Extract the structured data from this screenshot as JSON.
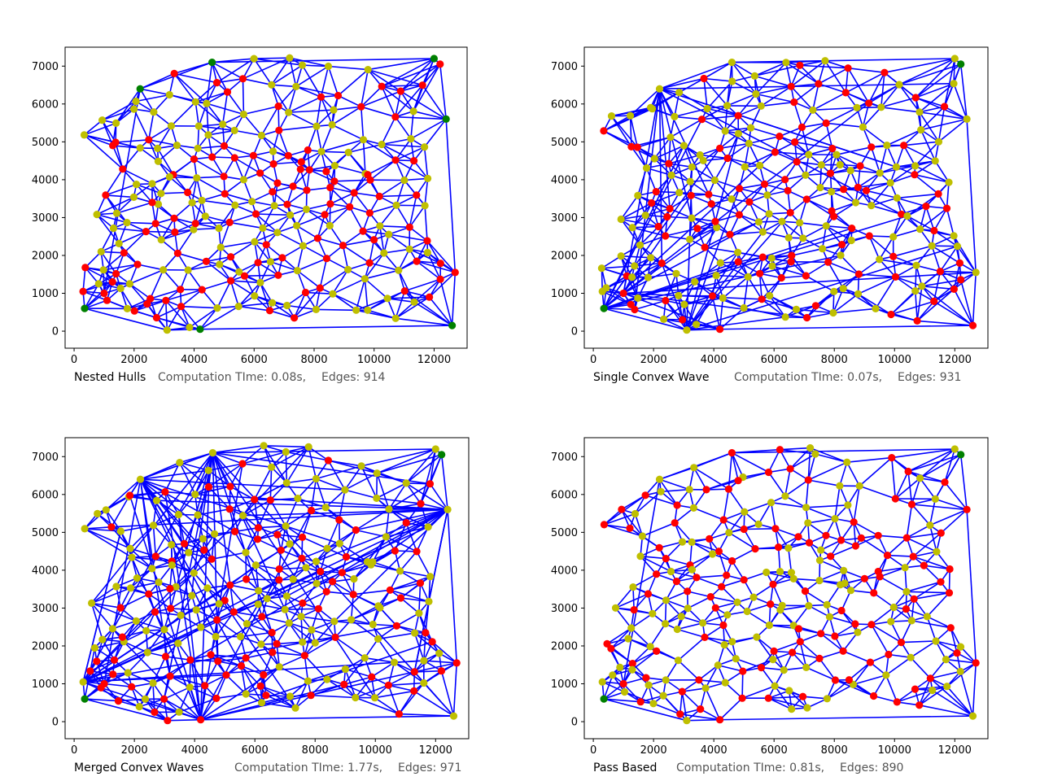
{
  "figure": {
    "panels": [
      {
        "name": "Nested Hulls",
        "time": "Computation TIme: 0.08s,",
        "edges": "Edges: 914"
      },
      {
        "name": "Single Convex Wave",
        "time": "Computation TIme: 0.07s,",
        "edges": "Edges: 931"
      },
      {
        "name": "Merged Convex Waves",
        "time": "Computation TIme: 1.77s,",
        "edges": "Edges: 971"
      },
      {
        "name": "Pass Based",
        "time": "Computation TIme: 0.81s,",
        "edges": "Edges: 890"
      }
    ],
    "colors": {
      "edge": "#0000ff",
      "red": "#ff0000",
      "yellow": "#bfbf00",
      "green": "#008000",
      "axes": "#000000"
    }
  },
  "chart_data": {
    "type": "scatter",
    "xlim": [
      -300,
      13100
    ],
    "ylim": [
      -450,
      7500
    ],
    "xticks": [
      0,
      2000,
      4000,
      6000,
      8000,
      10000,
      12000
    ],
    "yticks": [
      0,
      1000,
      2000,
      3000,
      4000,
      5000,
      6000,
      7000
    ],
    "grid": false,
    "hull_points": [
      [
        1000,
        1000
      ],
      [
        2200,
        6400
      ],
      [
        4600,
        7100
      ],
      [
        12000,
        7200
      ],
      [
        12200,
        7050
      ],
      [
        12400,
        5600
      ],
      [
        12700,
        1550
      ],
      [
        12600,
        150
      ],
      [
        4200,
        50
      ],
      [
        3100,
        30
      ],
      [
        350,
        600
      ],
      [
        300,
        1050
      ]
    ],
    "inner_points": [
      [
        450,
        5200
      ],
      [
        700,
        5600
      ],
      [
        1300,
        5600
      ],
      [
        1100,
        5000
      ],
      [
        1800,
        5900
      ],
      [
        2000,
        5950
      ],
      [
        2600,
        5200
      ],
      [
        3000,
        4800
      ],
      [
        3500,
        6700
      ],
      [
        4400,
        6100
      ],
      [
        5200,
        6350
      ],
      [
        6200,
        7200
      ],
      [
        7000,
        7100
      ],
      [
        7600,
        7150
      ],
      [
        8600,
        7000
      ],
      [
        9700,
        6850
      ],
      [
        10800,
        6300
      ],
      [
        11800,
        6400
      ],
      [
        11500,
        5900
      ],
      [
        10600,
        5700
      ],
      [
        10400,
        4800
      ],
      [
        9900,
        4300
      ],
      [
        8900,
        4500
      ],
      [
        8000,
        4300
      ],
      [
        7200,
        4700
      ],
      [
        6600,
        4900
      ],
      [
        6000,
        5200
      ],
      [
        5200,
        5000
      ],
      [
        4400,
        4600
      ],
      [
        3800,
        4500
      ],
      [
        3300,
        4200
      ],
      [
        2800,
        4000
      ],
      [
        2200,
        3800
      ],
      [
        1900,
        3400
      ],
      [
        1500,
        3000
      ],
      [
        1100,
        2600
      ],
      [
        700,
        2100
      ],
      [
        500,
        1800
      ],
      [
        600,
        1200
      ],
      [
        1000,
        800
      ],
      [
        1600,
        600
      ],
      [
        2200,
        400
      ],
      [
        2800,
        300
      ],
      [
        3600,
        250
      ],
      [
        4800,
        500
      ],
      [
        5600,
        700
      ],
      [
        6400,
        400
      ],
      [
        7200,
        300
      ],
      [
        8000,
        600
      ],
      [
        8800,
        900
      ],
      [
        9400,
        700
      ],
      [
        10000,
        500
      ],
      [
        10800,
        300
      ],
      [
        11300,
        700
      ],
      [
        11800,
        1000
      ],
      [
        12200,
        1300
      ],
      [
        12300,
        1900
      ],
      [
        11800,
        2400
      ],
      [
        11200,
        2800
      ],
      [
        11600,
        3300
      ],
      [
        11900,
        3900
      ],
      [
        11500,
        4500
      ],
      [
        10900,
        4000
      ],
      [
        10300,
        3500
      ],
      [
        10000,
        3000
      ],
      [
        9400,
        2600
      ],
      [
        8800,
        2300
      ],
      [
        8200,
        2000
      ],
      [
        7600,
        1700
      ],
      [
        7000,
        1500
      ],
      [
        6300,
        1300
      ],
      [
        5600,
        1500
      ],
      [
        4900,
        1700
      ],
      [
        4300,
        1900
      ],
      [
        3600,
        2100
      ],
      [
        3000,
        2300
      ],
      [
        2400,
        2500
      ],
      [
        2700,
        2900
      ],
      [
        3200,
        3100
      ],
      [
        3800,
        3300
      ],
      [
        4400,
        3500
      ],
      [
        5000,
        3700
      ],
      [
        5600,
        3900
      ],
      [
        6200,
        4100
      ],
      [
        6800,
        4000
      ],
      [
        7400,
        3800
      ],
      [
        8000,
        3600
      ],
      [
        8600,
        3400
      ],
      [
        9200,
        3300
      ],
      [
        8900,
        3900
      ],
      [
        8300,
        4100
      ],
      [
        7700,
        4200
      ],
      [
        7100,
        3400
      ],
      [
        6500,
        3200
      ],
      [
        5900,
        3000
      ],
      [
        5300,
        2800
      ],
      [
        4700,
        2700
      ],
      [
        4100,
        2600
      ],
      [
        3500,
        2700
      ],
      [
        5800,
        2500
      ],
      [
        6400,
        2400
      ],
      [
        7000,
        2600
      ],
      [
        7600,
        2800
      ],
      [
        8200,
        3000
      ],
      [
        6800,
        2000
      ],
      [
        6100,
        1900
      ],
      [
        5400,
        2100
      ],
      [
        4700,
        2200
      ],
      [
        4000,
        1500
      ],
      [
        3300,
        1200
      ],
      [
        2600,
        1000
      ],
      [
        1900,
        1300
      ],
      [
        1300,
        1600
      ],
      [
        1700,
        2000
      ],
      [
        2300,
        1800
      ],
      [
        2900,
        1600
      ],
      [
        9600,
        1800
      ],
      [
        10200,
        2100
      ],
      [
        10700,
        1600
      ],
      [
        11100,
        1200
      ],
      [
        10500,
        1000
      ],
      [
        9800,
        1300
      ],
      [
        9000,
        1500
      ],
      [
        8400,
        1200
      ],
      [
        7800,
        1000
      ],
      [
        7200,
        800
      ],
      [
        6600,
        700
      ],
      [
        6000,
        900
      ],
      [
        9500,
        5000
      ],
      [
        8700,
        5300
      ],
      [
        7900,
        5500
      ],
      [
        7300,
        5800
      ],
      [
        6600,
        6000
      ],
      [
        5800,
        5800
      ],
      [
        5000,
        5600
      ],
      [
        4200,
        5400
      ],
      [
        3400,
        5500
      ],
      [
        2800,
        5700
      ],
      [
        3000,
        6200
      ],
      [
        3900,
        6000
      ],
      [
        4700,
        6500
      ],
      [
        5600,
        6700
      ],
      [
        6400,
        6600
      ],
      [
        7300,
        6400
      ],
      [
        8200,
        6300
      ],
      [
        9000,
        6100
      ],
      [
        9800,
        5900
      ],
      [
        10300,
        6500
      ],
      [
        8600,
        5800
      ],
      [
        7700,
        4900
      ],
      [
        6900,
        5300
      ],
      [
        5500,
        4500
      ],
      [
        4800,
        4200
      ],
      [
        4200,
        3900
      ],
      [
        3600,
        3700
      ],
      [
        3000,
        3500
      ],
      [
        2500,
        3300
      ],
      [
        2000,
        2800
      ],
      [
        1400,
        2300
      ],
      [
        900,
        1500
      ],
      [
        800,
        3100
      ],
      [
        1300,
        3700
      ],
      [
        1700,
        4300
      ],
      [
        1500,
        4900
      ],
      [
        2100,
        4700
      ],
      [
        2600,
        4400
      ],
      [
        3500,
        4800
      ],
      [
        4100,
        4900
      ],
      [
        4700,
        5100
      ],
      [
        5400,
        5300
      ],
      [
        6100,
        4700
      ],
      [
        6700,
        4500
      ],
      [
        7500,
        4400
      ],
      [
        8300,
        4700
      ],
      [
        9000,
        4800
      ],
      [
        9600,
        4100
      ],
      [
        9300,
        3700
      ],
      [
        8700,
        2700
      ],
      [
        8100,
        2400
      ],
      [
        7400,
        2200
      ],
      [
        6700,
        1700
      ],
      [
        5900,
        1600
      ],
      [
        5100,
        1300
      ],
      [
        4500,
        1000
      ],
      [
        3800,
        800
      ],
      [
        3100,
        700
      ],
      [
        2400,
        700
      ],
      [
        1700,
        1000
      ],
      [
        1100,
        1300
      ],
      [
        5200,
        3300
      ],
      [
        5900,
        3500
      ],
      [
        6600,
        3700
      ],
      [
        4600,
        3100
      ],
      [
        4000,
        2900
      ],
      [
        6300,
        2800
      ],
      [
        7000,
        3000
      ],
      [
        7800,
        3200
      ],
      [
        8400,
        3800
      ],
      [
        3200,
        4000
      ],
      [
        2700,
        3700
      ],
      [
        12000,
        2100
      ],
      [
        11600,
        1700
      ],
      [
        11200,
        2200
      ],
      [
        10600,
        2600
      ],
      [
        10100,
        4000
      ],
      [
        10500,
        4400
      ],
      [
        11000,
        5200
      ],
      [
        11700,
        5000
      ],
      [
        11300,
        3600
      ],
      [
        10800,
        3300
      ],
      [
        10400,
        2900
      ],
      [
        9900,
        2500
      ]
    ]
  }
}
